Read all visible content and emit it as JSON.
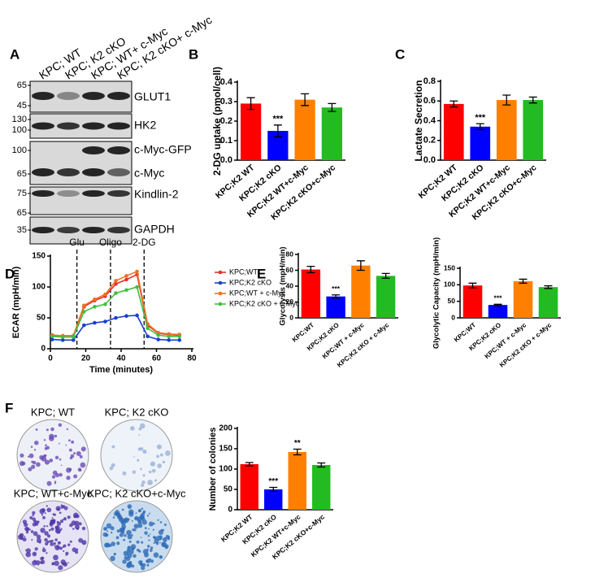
{
  "panel_labels": [
    "A",
    "B",
    "C",
    "D",
    "E",
    "F"
  ],
  "blot": {
    "columns": [
      "KPC; WT",
      "KPC; K2 cKO",
      "KPC; WT+ c-Myc",
      "KPC; K2 cKO+ c-Myc"
    ],
    "rows": [
      {
        "labels": [
          "GLUT1"
        ],
        "markers": [
          65,
          45
        ]
      },
      {
        "labels": [
          "HK2"
        ],
        "markers": [
          130,
          100
        ]
      },
      {
        "labels": [
          "c-Myc-GFP",
          "c-Myc"
        ],
        "markers": [
          100,
          65
        ]
      },
      {
        "labels": [
          "Kindlin-2"
        ],
        "markers": [
          75,
          65
        ]
      },
      {
        "labels": [
          "GAPDH"
        ],
        "markers": [
          35
        ]
      }
    ]
  },
  "colonies": {
    "labels": [
      "KPC; WT",
      "KPC; K2 cKO",
      "KPC; WT+c-Myc",
      "KPC; K2 cKO+c-Myc"
    ]
  },
  "chart_data": [
    {
      "type": "bar",
      "ylabel": "2-DG uptake (pmol/cell)",
      "categories": [
        "KPC;K2 WT",
        "KPC;K2 cKO",
        "KPC;K2 WT+c-Myc",
        "KPC;K2 cKO+c-Myc"
      ],
      "values": [
        0.29,
        0.15,
        0.31,
        0.27
      ],
      "errors": [
        0.03,
        0.03,
        0.03,
        0.02
      ],
      "colors": [
        "#ff0000",
        "#0000ff",
        "#ff8000",
        "#22bb22"
      ],
      "significance": [
        null,
        "***",
        null,
        null
      ],
      "ylim": [
        0,
        0.4
      ],
      "yticks": [
        {
          "value": 0,
          "label": "0.0"
        },
        0.1,
        0.2,
        0.3,
        0.4
      ]
    },
    {
      "type": "bar",
      "ylabel": "Lactate   Secretion",
      "categories": [
        "KPC;K2 WT",
        "KPC;K2 cKO",
        "KPC;K2 WT+c-Myc",
        "KPC;K2 cKO+c-Myc"
      ],
      "values": [
        0.57,
        0.34,
        0.61,
        0.61
      ],
      "errors": [
        0.03,
        0.03,
        0.05,
        0.03
      ],
      "colors": [
        "#ff0000",
        "#0000ff",
        "#ff8000",
        "#22bb22"
      ],
      "significance": [
        null,
        "***",
        null,
        null
      ],
      "ylim": [
        0,
        0.8
      ],
      "yticks": [
        {
          "value": 0,
          "label": "0.0"
        },
        0.2,
        0.4,
        0.6,
        0.8
      ]
    },
    {
      "type": "line",
      "xlabel": "Time (minutes)",
      "ylabel": "ECAR (mpH/min)",
      "x": [
        1,
        7,
        13,
        19,
        25,
        31,
        37,
        43,
        49,
        55,
        61,
        67,
        73
      ],
      "series": [
        {
          "name": "KPC;WT",
          "color": "#e53030",
          "values": [
            22,
            21,
            21,
            68,
            78,
            85,
            105,
            112,
            120,
            38,
            25,
            23,
            22
          ]
        },
        {
          "name": "KPC;K2 cKO",
          "color": "#1a3fd0",
          "values": [
            15,
            14,
            14,
            38,
            42,
            44,
            50,
            53,
            54,
            20,
            15,
            14,
            14
          ]
        },
        {
          "name": "KPC;WT + c-Myc",
          "color": "#f07020",
          "values": [
            22,
            21,
            21,
            70,
            80,
            88,
            110,
            118,
            125,
            40,
            26,
            24,
            23
          ]
        },
        {
          "name": "KPC;K2 cKO + c-Myc",
          "color": "#40c040",
          "values": [
            20,
            19,
            19,
            60,
            68,
            72,
            90,
            95,
            100,
            33,
            22,
            20,
            20
          ]
        }
      ],
      "annotations": [
        {
          "text": "Glu",
          "x": 15
        },
        {
          "text": "Oligo",
          "x": 34
        },
        {
          "text": "2-DG",
          "x": 53
        }
      ],
      "xlim": [
        0,
        80
      ],
      "xticks": [
        0,
        20,
        40,
        60,
        80
      ],
      "ylim": [
        0,
        150
      ],
      "yticks": [
        0,
        50,
        100,
        150
      ],
      "legend": "upper right"
    },
    {
      "type": "bar",
      "ylabel": "Glycolysis (mpH/min)",
      "categories": [
        "KPC;WT",
        "KPC;K2 cKO",
        "KPC;WT + c-Myc",
        "KPC;K2 cKO + c-Myc"
      ],
      "values": [
        61,
        27,
        66,
        53
      ],
      "errors": [
        4,
        2,
        6,
        3
      ],
      "colors": [
        "#ff0000",
        "#0000ff",
        "#ff8000",
        "#22bb22"
      ],
      "significance": [
        null,
        "***",
        null,
        null
      ],
      "ylim": [
        0,
        80
      ],
      "yticks": [
        0,
        20,
        40,
        60,
        80
      ]
    },
    {
      "type": "bar",
      "ylabel": "Glycolytic Capacity (mpH/min)",
      "categories": [
        "KPC;WT",
        "KPC;K2 cKO",
        "KPC;WT + c-Myc",
        "KPC;K2 cKO + c-Myc"
      ],
      "values": [
        98,
        39,
        111,
        93
      ],
      "errors": [
        7,
        2,
        6,
        4
      ],
      "colors": [
        "#ff0000",
        "#0000ff",
        "#ff8000",
        "#22bb22"
      ],
      "significance": [
        null,
        "***",
        null,
        null
      ],
      "ylim": [
        0,
        150
      ],
      "yticks": [
        0,
        50,
        100,
        150
      ]
    },
    {
      "type": "bar",
      "ylabel": "Number of colonies",
      "categories": [
        "KPC;K2 WT",
        "KPC;K2 cKO",
        "KPC;K2 WT+c-Myc",
        "KPC;K2 cKO+c-Myc"
      ],
      "values": [
        112,
        50,
        142,
        110
      ],
      "errors": [
        4,
        5,
        7,
        5
      ],
      "colors": [
        "#ff0000",
        "#0000ff",
        "#ff8000",
        "#22bb22"
      ],
      "significance": [
        null,
        "***",
        "**",
        null
      ],
      "ylim": [
        0,
        200
      ],
      "yticks": [
        0,
        50,
        100,
        150,
        200
      ]
    }
  ]
}
